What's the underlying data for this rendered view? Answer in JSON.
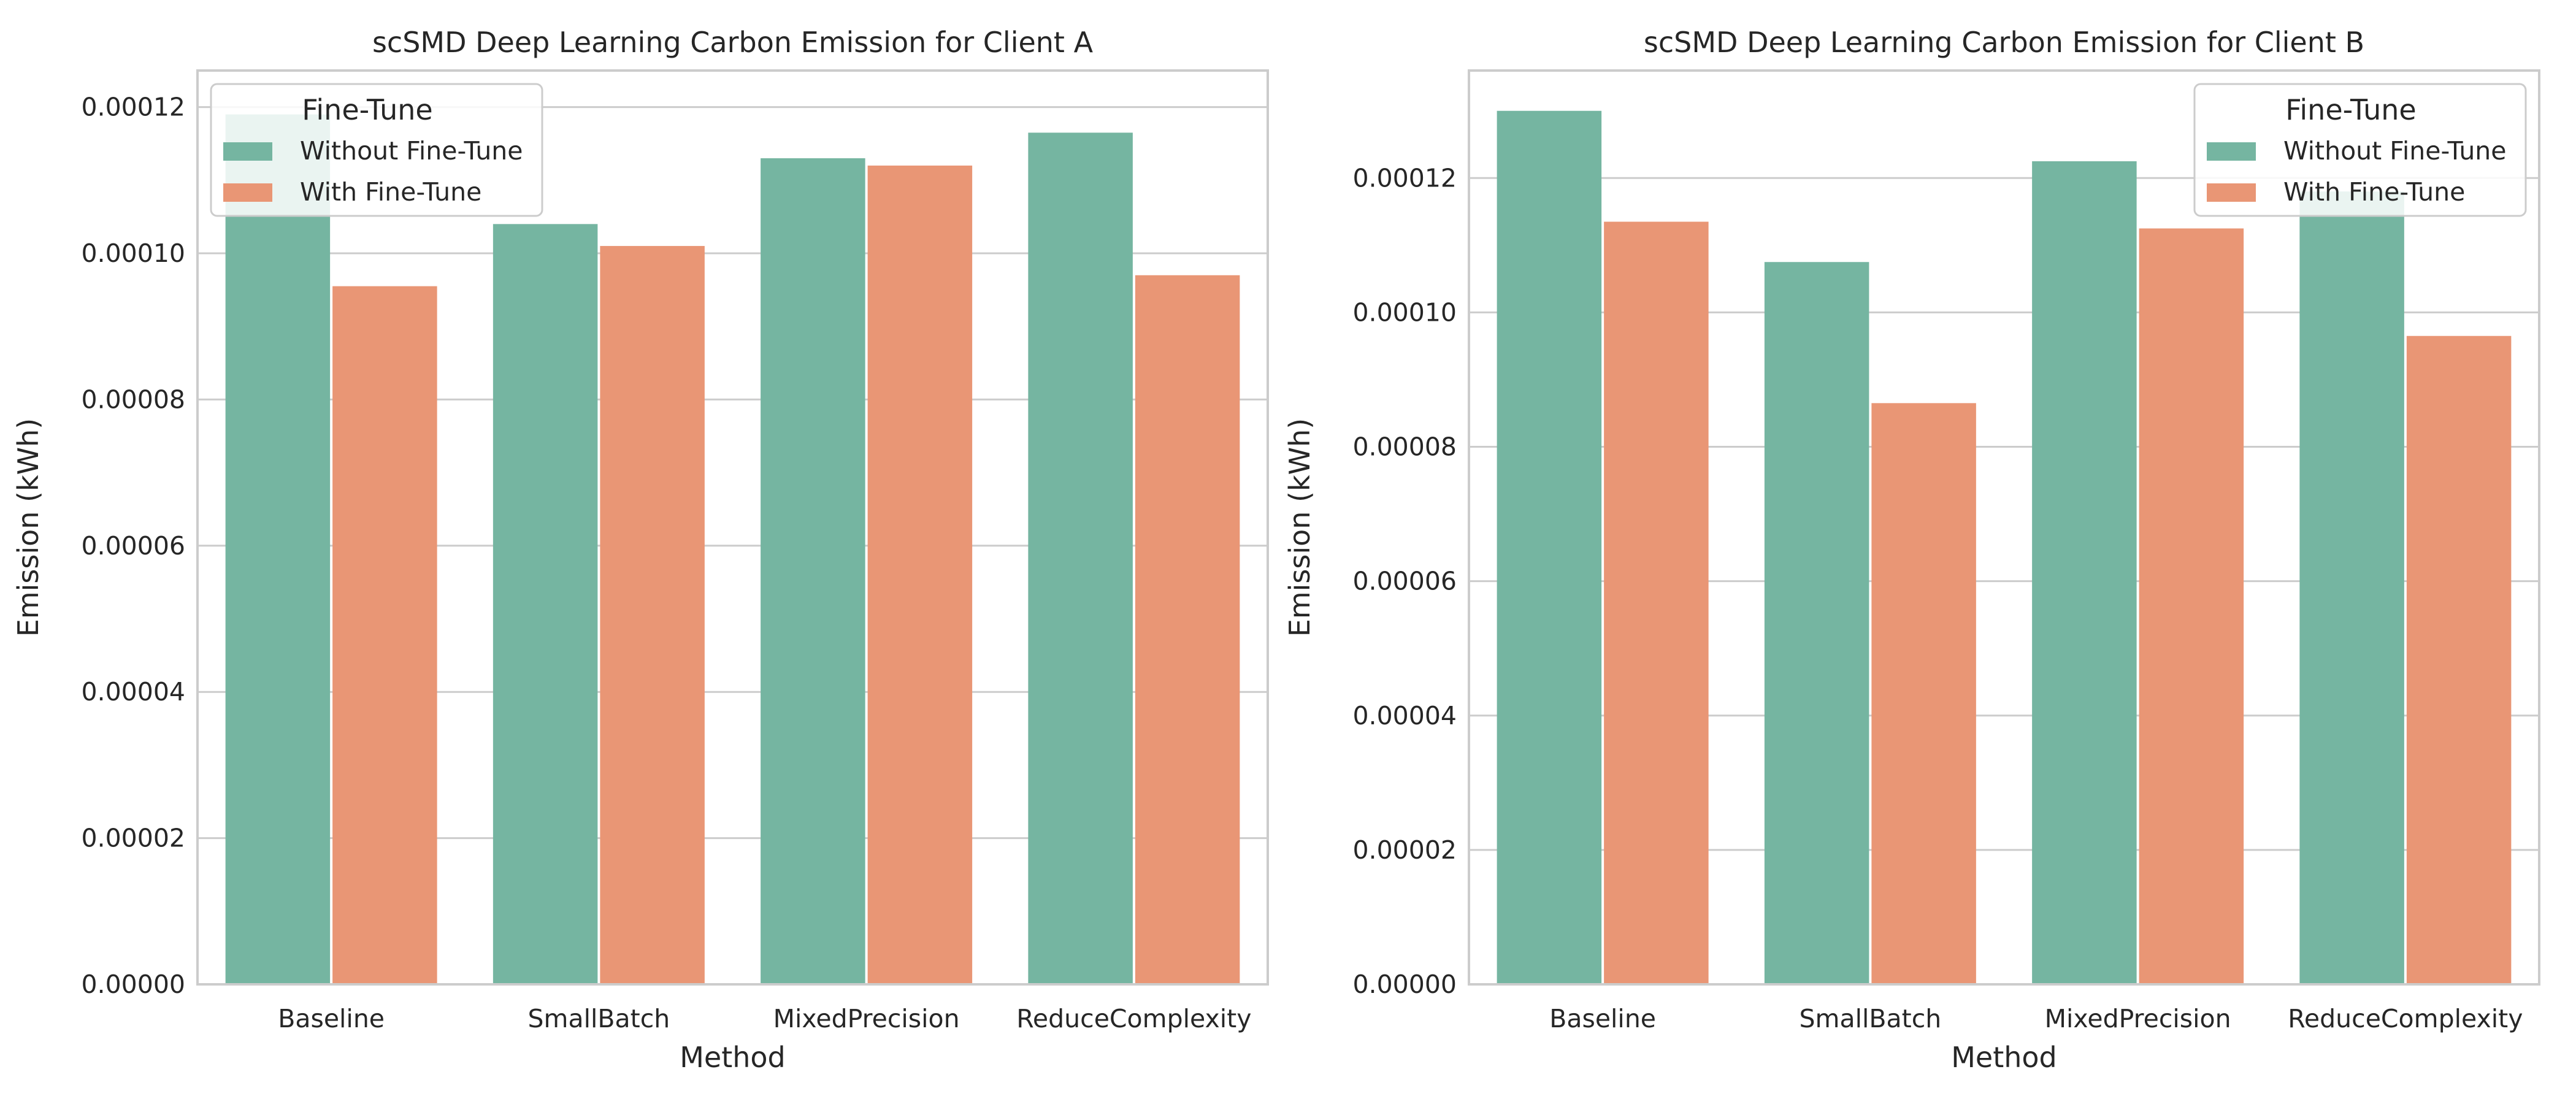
{
  "chart_data": [
    {
      "type": "bar",
      "title": "scSMD Deep Learning Carbon Emission for Client A",
      "xlabel": "Method",
      "ylabel": "Emission (kWh)",
      "categories": [
        "Baseline",
        "SmallBatch",
        "MixedPrecision",
        "ReduceComplexity"
      ],
      "series": [
        {
          "name": "Without Fine-Tune",
          "values": [
            0.000119,
            0.000104,
            0.000113,
            0.0001165
          ],
          "color": "#75b5a1"
        },
        {
          "name": "With Fine-Tune",
          "values": [
            9.55e-05,
            0.000101,
            0.000112,
            9.7e-05
          ],
          "color": "#e99675"
        }
      ],
      "ylim": [
        0,
        0.000125
      ],
      "yticks": [
        "0.00000",
        "0.00002",
        "0.00004",
        "0.00006",
        "0.00008",
        "0.00010",
        "0.00012"
      ],
      "legend_title": "Fine-Tune",
      "legend_position": "top-left",
      "grid": "horizontal"
    },
    {
      "type": "bar",
      "title": "scSMD Deep Learning Carbon Emission for Client B",
      "xlabel": "Method",
      "ylabel": "Emission (kWh)",
      "categories": [
        "Baseline",
        "SmallBatch",
        "MixedPrecision",
        "ReduceComplexity"
      ],
      "series": [
        {
          "name": "Without Fine-Tune",
          "values": [
            0.00013,
            0.0001075,
            0.0001225,
            0.000118
          ],
          "color": "#75b5a1"
        },
        {
          "name": "With Fine-Tune",
          "values": [
            0.0001135,
            8.65e-05,
            0.0001125,
            9.65e-05
          ],
          "color": "#e99675"
        }
      ],
      "ylim": [
        0,
        0.000136
      ],
      "yticks": [
        "0.00000",
        "0.00002",
        "0.00004",
        "0.00006",
        "0.00008",
        "0.00010",
        "0.00012"
      ],
      "legend_title": "Fine-Tune",
      "legend_position": "top-right",
      "grid": "horizontal"
    }
  ]
}
